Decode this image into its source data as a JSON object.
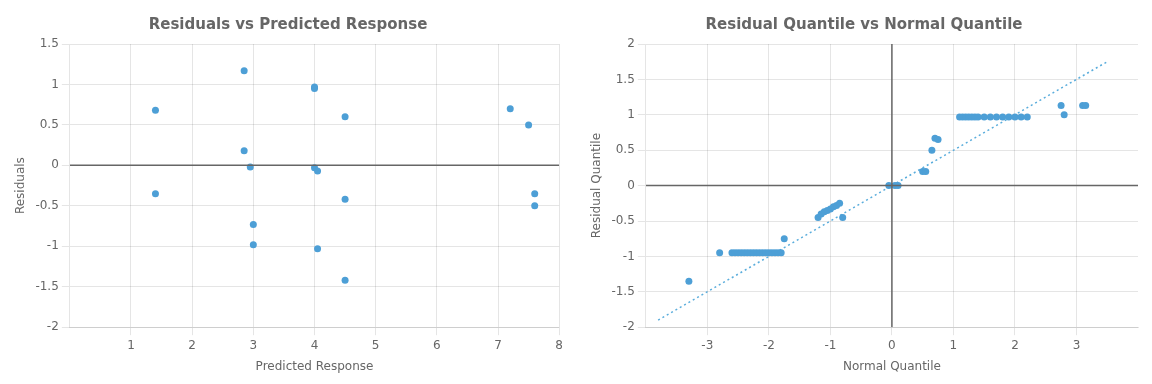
{
  "chart_data": [
    {
      "type": "scatter",
      "title": "Residuals vs Predicted Response",
      "x_label": "Predicted Response",
      "y_label": "Residuals",
      "xlim": [
        0,
        8
      ],
      "ylim": [
        -2,
        1.5
      ],
      "xticks": [
        1,
        2,
        3,
        4,
        5,
        6,
        7,
        8
      ],
      "yticks": [
        -2,
        -1.5,
        -1,
        -0.5,
        0,
        0.5,
        1,
        1.5
      ],
      "x": [
        1.4,
        1.4,
        2.85,
        2.85,
        2.95,
        3.0,
        3.0,
        4.0,
        4.0,
        4.0,
        4.05,
        4.05,
        4.5,
        4.5,
        4.5,
        7.2,
        7.5,
        7.6,
        7.6
      ],
      "values": [
        0.68,
        -0.35,
        1.17,
        0.18,
        -0.02,
        -0.98,
        -0.73,
        0.97,
        0.95,
        -0.03,
        -0.07,
        -1.03,
        0.6,
        -0.42,
        -1.42,
        0.7,
        0.5,
        -0.35,
        -0.5
      ],
      "color": "#4D9FD6",
      "marker": "circle",
      "hlines": [
        0
      ],
      "grid": true
    },
    {
      "type": "scatter",
      "title": "Residual Quantile vs Normal Quantile",
      "x_label": "Normal Quantile",
      "y_label": "Residual Quantile",
      "xlim": [
        -4,
        4
      ],
      "ylim": [
        -2,
        2
      ],
      "xticks": [
        -3,
        -2,
        -1,
        0,
        1,
        2,
        3
      ],
      "yticks": [
        -2,
        -1.5,
        -1,
        -0.5,
        0,
        0.5,
        1,
        1.5,
        2
      ],
      "series": [
        {
          "type": "line",
          "line_style": "dotted",
          "color": "#5AADDC",
          "x": [
            -3.8,
            3.5
          ],
          "values": [
            -1.9,
            1.75
          ]
        },
        {
          "type": "scatter",
          "marker": "circle",
          "color": "#4D9FD6",
          "x": [
            -3.3,
            -2.8,
            -2.6,
            -2.55,
            -2.5,
            -2.45,
            -2.4,
            -2.35,
            -2.3,
            -2.25,
            -2.2,
            -2.15,
            -2.1,
            -2.05,
            -2.0,
            -1.95,
            -1.9,
            -1.85,
            -1.8,
            -1.75,
            -1.2,
            -1.15,
            -1.1,
            -1.05,
            -1.0,
            -0.95,
            -0.9,
            -0.85,
            -0.8,
            -0.05,
            0.05,
            0.1,
            0.5,
            0.55,
            0.65,
            0.7,
            0.75,
            1.1,
            1.15,
            1.2,
            1.25,
            1.3,
            1.35,
            1.4,
            1.5,
            1.6,
            1.7,
            1.8,
            1.9,
            2.0,
            2.1,
            2.2,
            2.75,
            2.8,
            3.1,
            3.15
          ],
          "values": [
            -1.35,
            -0.95,
            -0.95,
            -0.95,
            -0.95,
            -0.95,
            -0.95,
            -0.95,
            -0.95,
            -0.95,
            -0.95,
            -0.95,
            -0.95,
            -0.95,
            -0.95,
            -0.95,
            -0.95,
            -0.95,
            -0.95,
            -0.75,
            -0.45,
            -0.4,
            -0.37,
            -0.35,
            -0.33,
            -0.3,
            -0.28,
            -0.25,
            -0.45,
            0.0,
            0.0,
            0.0,
            0.2,
            0.2,
            0.5,
            0.67,
            0.65,
            0.97,
            0.97,
            0.97,
            0.97,
            0.97,
            0.97,
            0.97,
            0.97,
            0.97,
            0.97,
            0.97,
            0.97,
            0.97,
            0.97,
            0.97,
            1.13,
            1.0,
            1.13,
            1.13
          ]
        }
      ],
      "hlines": [
        0
      ],
      "vlines": [
        0
      ],
      "grid": true
    }
  ]
}
